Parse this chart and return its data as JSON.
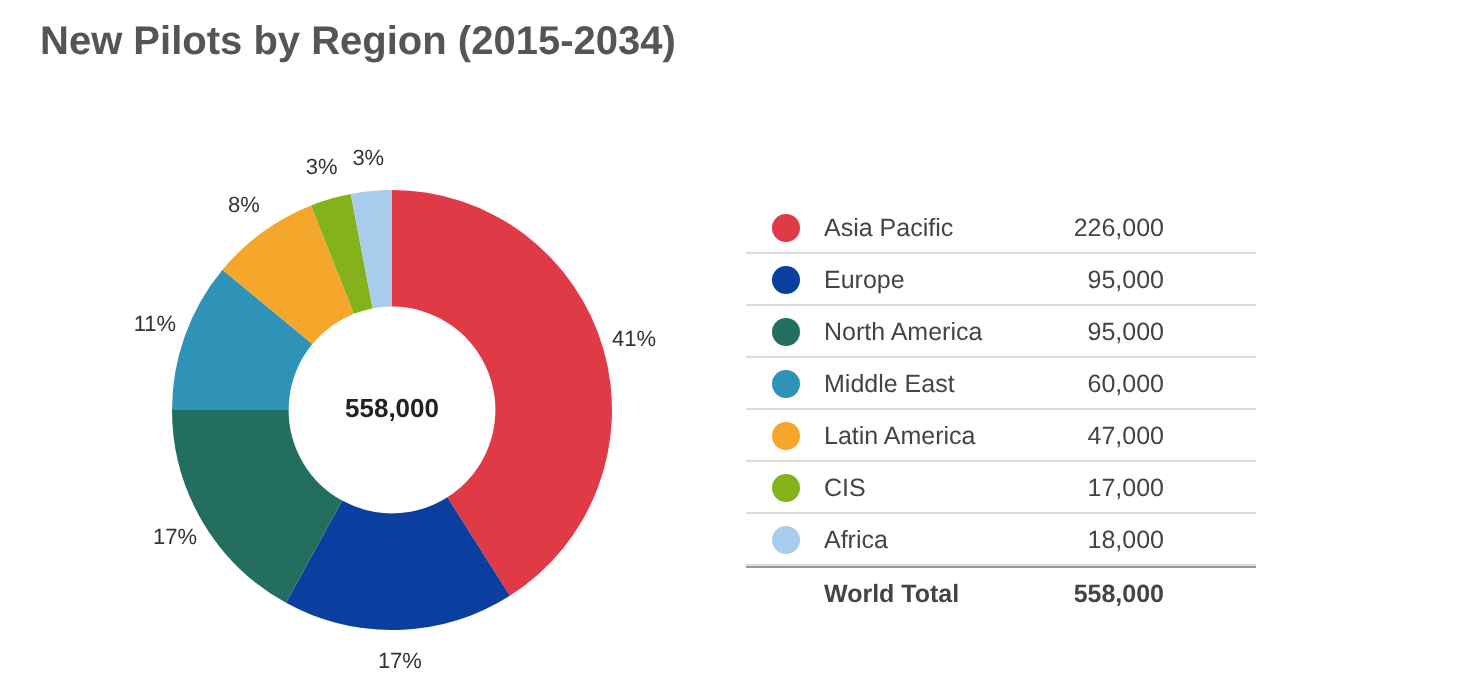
{
  "chart_data": {
    "type": "donut",
    "title": "New Pilots by Region (2015-2034)",
    "categories": [
      "Asia Pacific",
      "Europe",
      "North America",
      "Middle East",
      "Latin America",
      "CIS",
      "Africa"
    ],
    "values": [
      41,
      17,
      17,
      11,
      8,
      3,
      3
    ],
    "colors": [
      "#e03a47",
      "#0a3fa0",
      "#236e5e",
      "#2f93b8",
      "#f5a72c",
      "#84b21a",
      "#a8cdec"
    ],
    "value_labels": [
      "41%",
      "17%",
      "17%",
      "11%",
      "8%",
      "3%",
      "3%"
    ],
    "legend": "right",
    "annotations": [
      "558,000",
      "226,000",
      "95,000",
      "95,000",
      "60,000",
      "47,000",
      "17,000",
      "18,000",
      "World Total",
      "558,000"
    ]
  }
}
